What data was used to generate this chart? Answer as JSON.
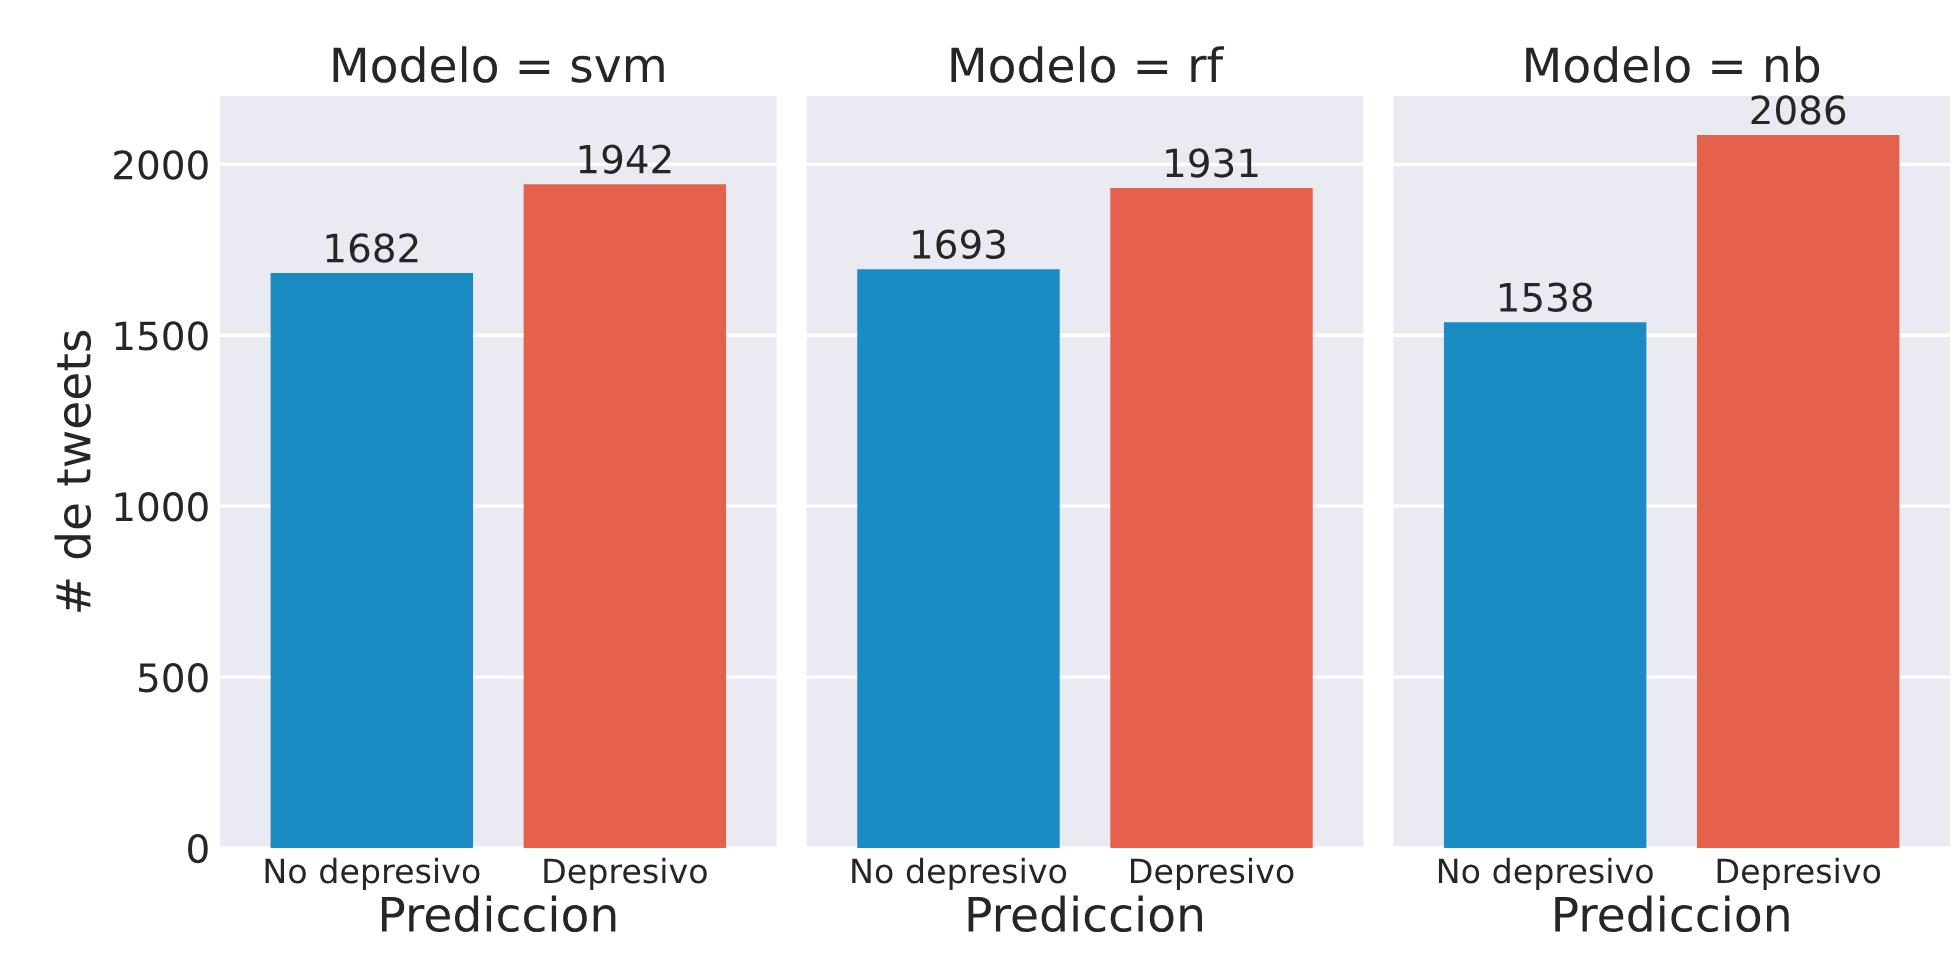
{
  "chart_data": [
    {
      "type": "bar",
      "title": "Modelo = svm",
      "xlabel": "Prediccion",
      "ylabel": "# de tweets",
      "categories": [
        "No depresivo",
        "Depresivo"
      ],
      "values": [
        1682,
        1942
      ],
      "colors": [
        "#1b8bc3",
        "#e4624b"
      ],
      "ylim": [
        0,
        2200
      ],
      "yticks": [
        0,
        500,
        1000,
        1500,
        2000
      ],
      "grid": "y",
      "data_labels": true
    },
    {
      "type": "bar",
      "title": "Modelo = rf",
      "xlabel": "Prediccion",
      "categories": [
        "No depresivo",
        "Depresivo"
      ],
      "values": [
        1693,
        1931
      ],
      "colors": [
        "#1b8bc3",
        "#e4624b"
      ],
      "ylim": [
        0,
        2200
      ],
      "yticks": [
        0,
        500,
        1000,
        1500,
        2000
      ],
      "grid": "y",
      "data_labels": true,
      "tick_labels": "x"
    },
    {
      "type": "bar",
      "title": "Modelo = nb",
      "xlabel": "Prediccion",
      "categories": [
        "No depresivo",
        "Depresivo"
      ],
      "values": [
        1538,
        2086
      ],
      "colors": [
        "#1b8bc3",
        "#e4624b"
      ],
      "ylim": [
        0,
        2200
      ],
      "yticks": [
        0,
        500,
        1000,
        1500,
        2000
      ],
      "grid": "y",
      "data_labels": true,
      "tick_labels": "x"
    }
  ]
}
